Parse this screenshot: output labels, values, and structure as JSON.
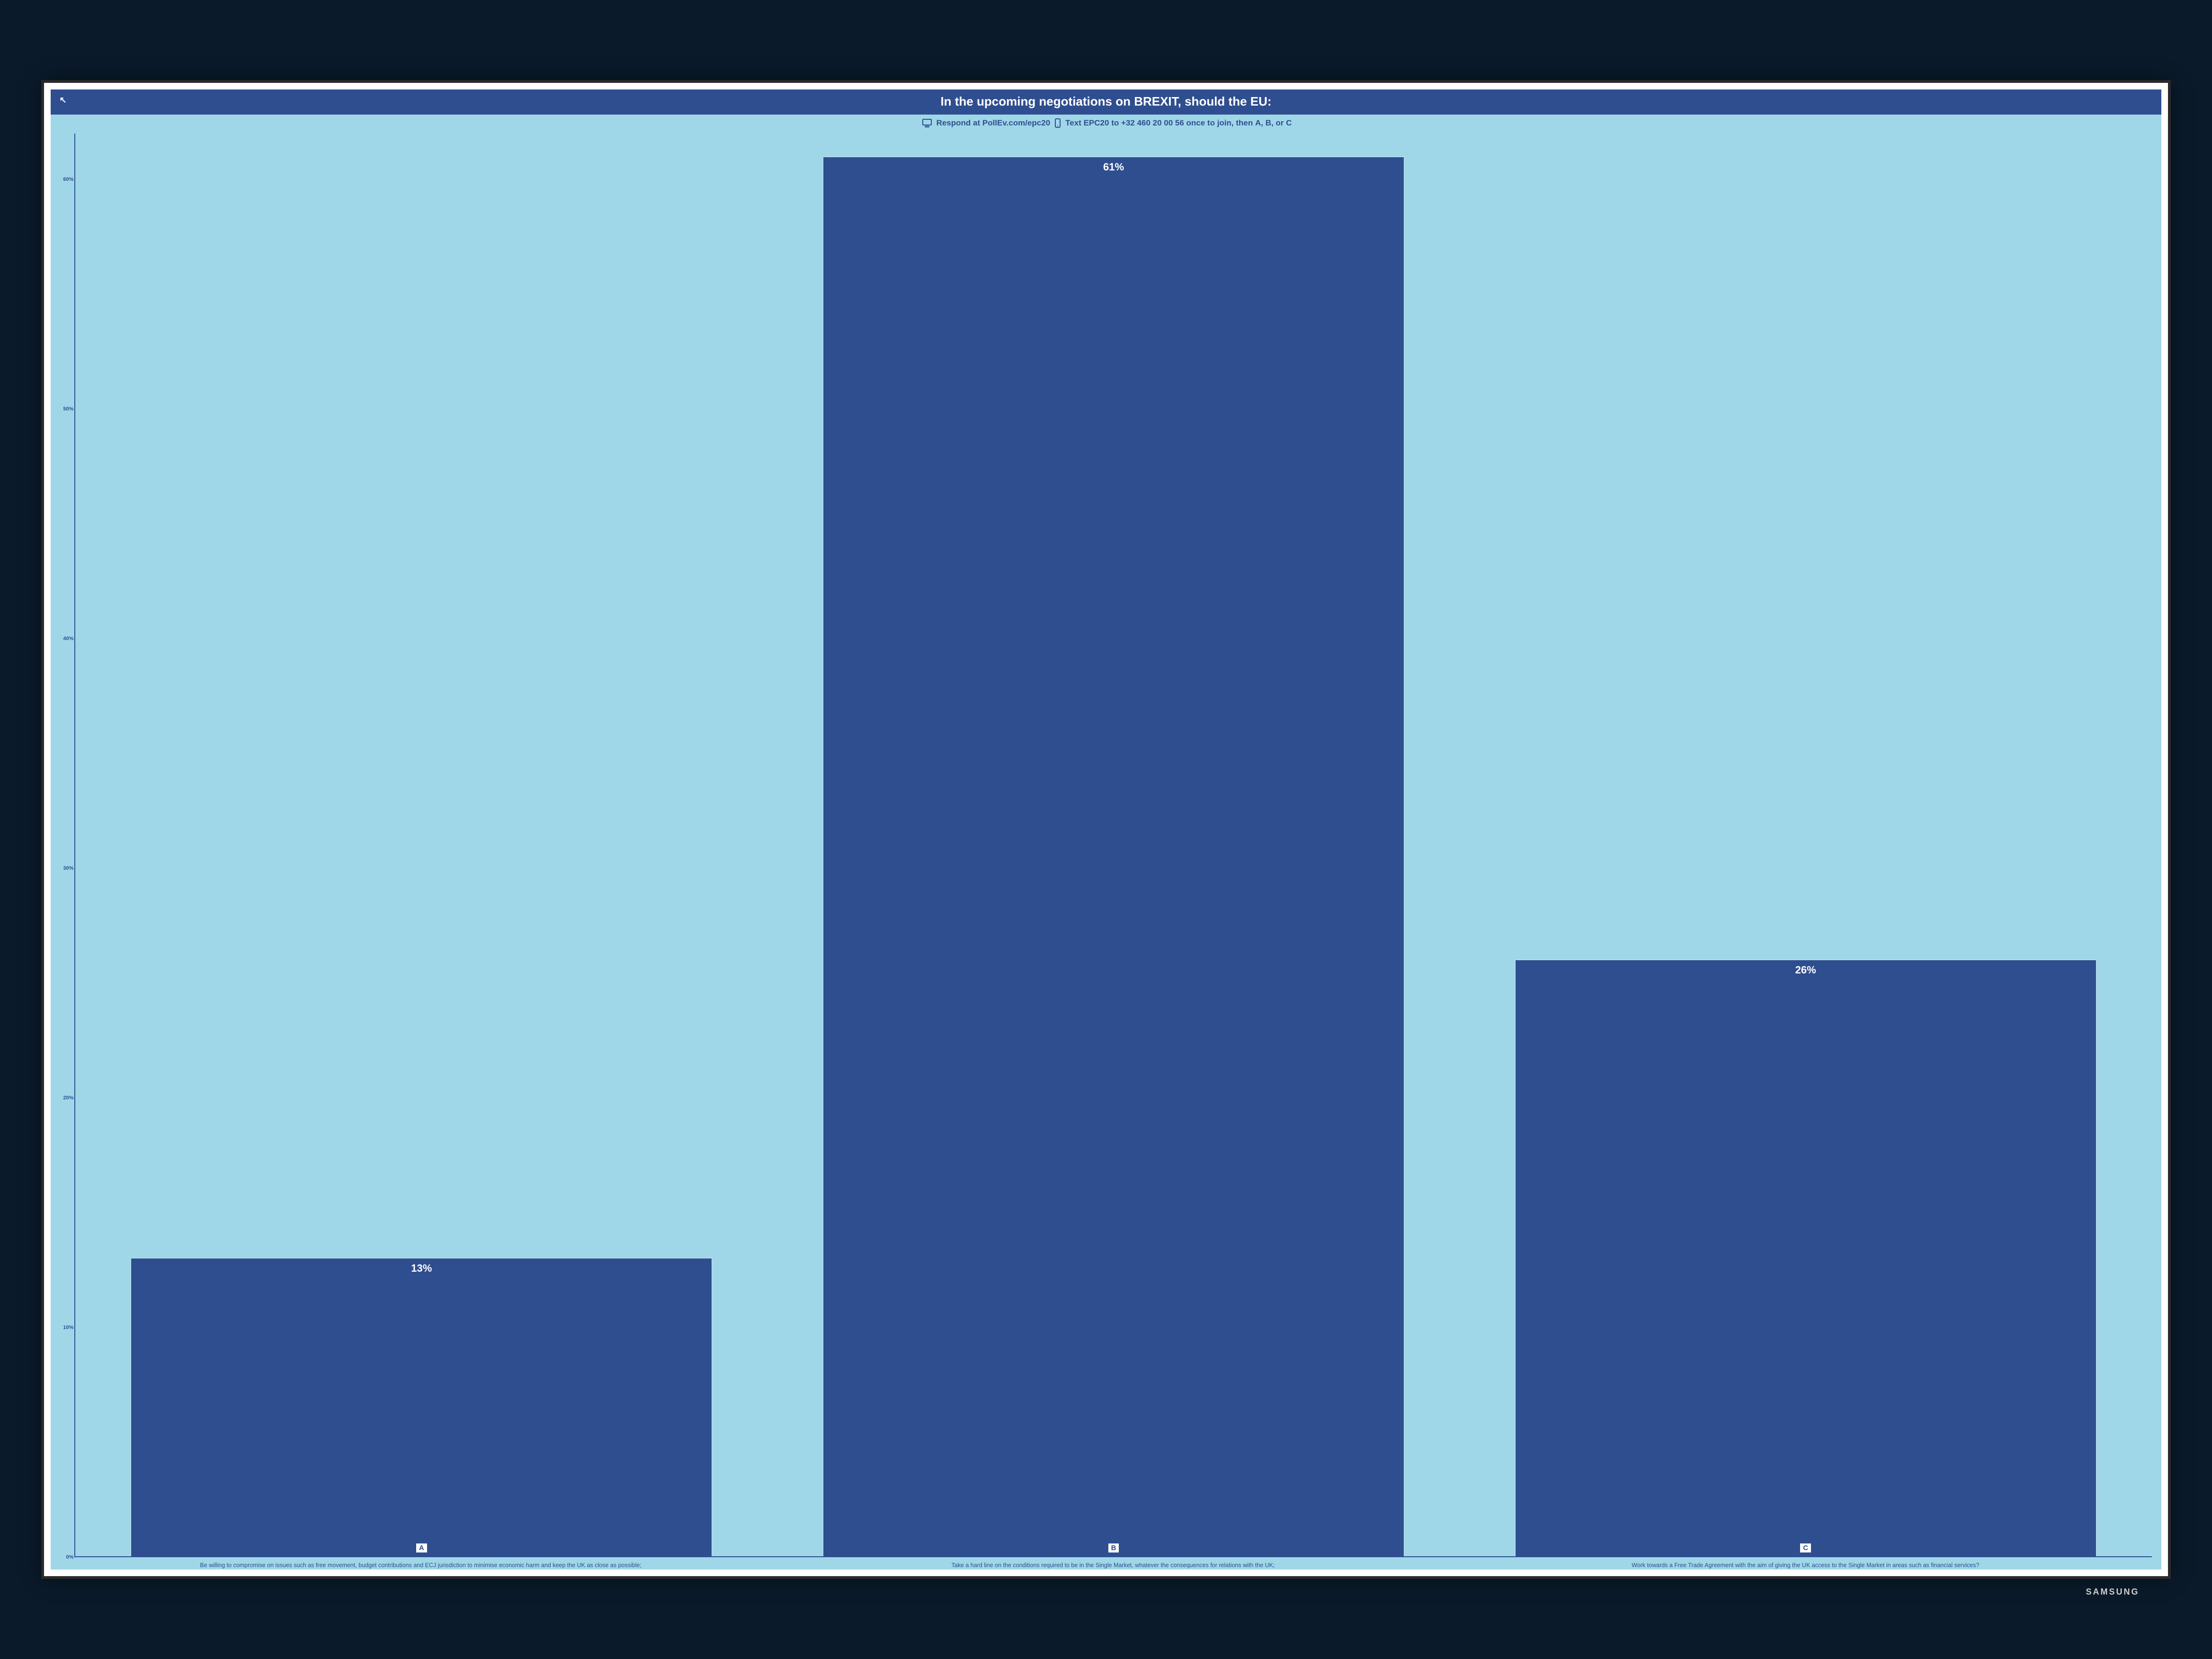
{
  "tv_brand": "SAMSUNG",
  "slide": {
    "title": "In the upcoming negotiations on BREXIT, should the EU:",
    "title_bg": "#2f4e8f",
    "title_color": "#ffffff",
    "title_fontsize": 26,
    "background_color": "#9fd7e8",
    "text_color": "#2f4e8f",
    "instructions": {
      "respond_prefix": "Respond at ",
      "respond_url": "PollEv.com/epc20",
      "text_prefix": "Text ",
      "text_code": "EPC20",
      "text_mid": " to ",
      "text_number": "+32 460 20 00 56",
      "text_suffix_plain": " once to join, then ",
      "text_suffix_bold": "A, B, or C",
      "fontsize": 17
    }
  },
  "chart": {
    "type": "bar",
    "ylim": [
      0,
      62
    ],
    "yticks": [
      0,
      10,
      20,
      30,
      40,
      50,
      60
    ],
    "ytick_labels": [
      "0%",
      "10%",
      "20%",
      "30%",
      "40%",
      "50%",
      "60%"
    ],
    "ytick_fontsize": 11,
    "axis_color": "#2f4e8f",
    "bar_color": "#2f4e8f",
    "bar_border_color": "#c6e6f0",
    "value_label_color": "#ffffff",
    "value_label_fontsize": 22,
    "letter_box_bg": "#ffffff",
    "letter_box_color": "#2f4e8f",
    "bars": [
      {
        "letter": "A",
        "value": 13,
        "value_label": "13%",
        "x_label": "Be willing to compromise on issues such as free movement, budget contributions and ECJ jurisdiction to minimise economic harm and keep the UK as close as possible;"
      },
      {
        "letter": "B",
        "value": 61,
        "value_label": "61%",
        "x_label": "Take a hard line on the conditions required to be in the Single Market, whatever the consequences for relations with the UK;"
      },
      {
        "letter": "C",
        "value": 26,
        "value_label": "26%",
        "x_label": "Work towards a Free Trade Agreement with the aim of giving the UK access to the Single Market in areas such as financial services?"
      }
    ]
  }
}
